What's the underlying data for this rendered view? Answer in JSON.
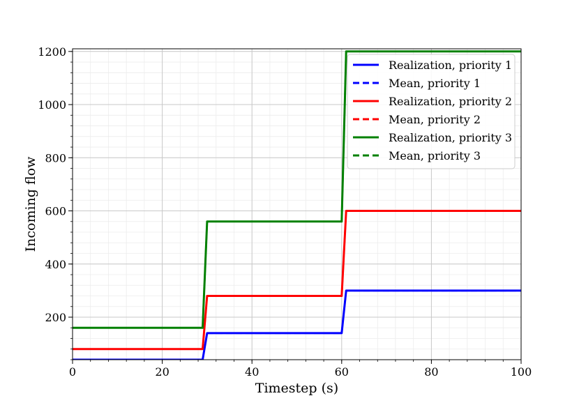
{
  "chart_data": {
    "type": "line",
    "title": "",
    "xlabel": "Timestep (s)",
    "ylabel": "Incoming flow",
    "xlim": [
      0,
      100
    ],
    "ylim": [
      40,
      1210
    ],
    "xticks": [
      0,
      20,
      40,
      60,
      80,
      100
    ],
    "yticks": [
      200,
      400,
      600,
      800,
      1000,
      1200
    ],
    "grid": true,
    "minor_grid": true,
    "legend_position": "top-right",
    "series": [
      {
        "name": "Realization, priority 1",
        "color": "#0000ff",
        "style": "solid",
        "x": [
          0,
          29,
          30,
          60,
          61,
          100
        ],
        "y": [
          40,
          40,
          140,
          140,
          300,
          300
        ]
      },
      {
        "name": "Mean, priority 1",
        "color": "#0000ff",
        "style": "dashed",
        "x": [
          0,
          29,
          30,
          60,
          61,
          100
        ],
        "y": [
          40,
          40,
          140,
          140,
          300,
          300
        ]
      },
      {
        "name": "Realization, priority 2",
        "color": "#ff0000",
        "style": "solid",
        "x": [
          0,
          29,
          30,
          60,
          61,
          100
        ],
        "y": [
          80,
          80,
          280,
          280,
          600,
          600
        ]
      },
      {
        "name": "Mean, priority 2",
        "color": "#ff0000",
        "style": "dashed",
        "x": [
          0,
          29,
          30,
          60,
          61,
          100
        ],
        "y": [
          80,
          80,
          280,
          280,
          600,
          600
        ]
      },
      {
        "name": "Realization, priority 3",
        "color": "#008000",
        "style": "solid",
        "x": [
          0,
          29,
          30,
          60,
          61,
          100
        ],
        "y": [
          160,
          160,
          560,
          560,
          1200,
          1200
        ]
      },
      {
        "name": "Mean, priority 3",
        "color": "#008000",
        "style": "dashed",
        "x": [
          0,
          29,
          30,
          60,
          61,
          100
        ],
        "y": [
          160,
          160,
          560,
          560,
          1200,
          1200
        ]
      }
    ]
  }
}
